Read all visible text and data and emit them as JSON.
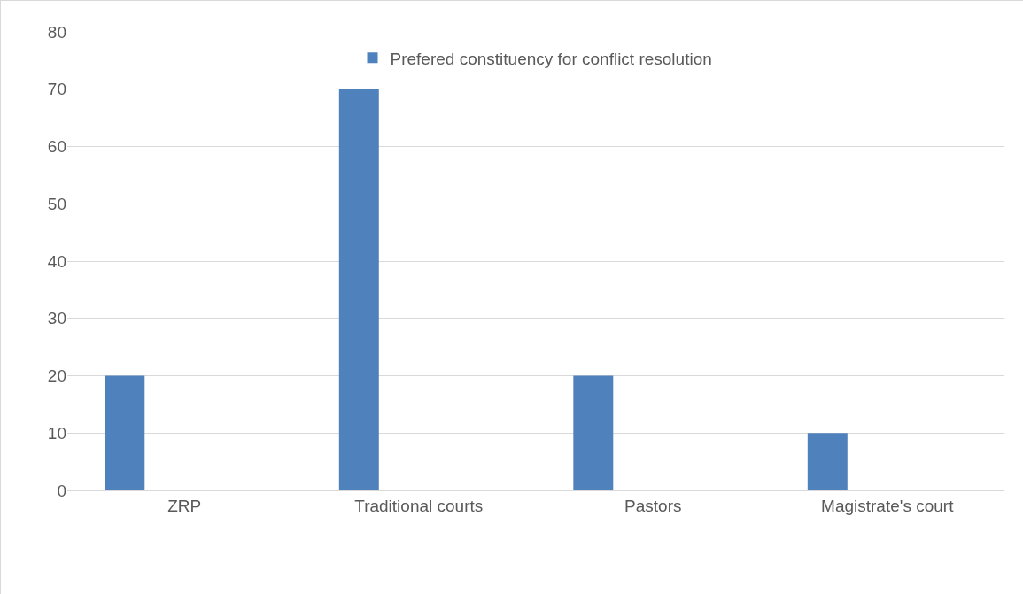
{
  "chart_data": {
    "type": "bar",
    "categories": [
      "ZRP",
      "Traditional courts",
      "Pastors",
      "Magistrate's court"
    ],
    "series": [
      {
        "name": "Prefered constituency for conflict resolution",
        "color": "#4f81bd",
        "values": [
          20,
          70,
          20,
          10
        ]
      }
    ],
    "ylim": [
      0,
      80
    ],
    "yticks": [
      0,
      10,
      20,
      30,
      40,
      50,
      60,
      70,
      80
    ],
    "grid": "y",
    "legend": "top"
  }
}
